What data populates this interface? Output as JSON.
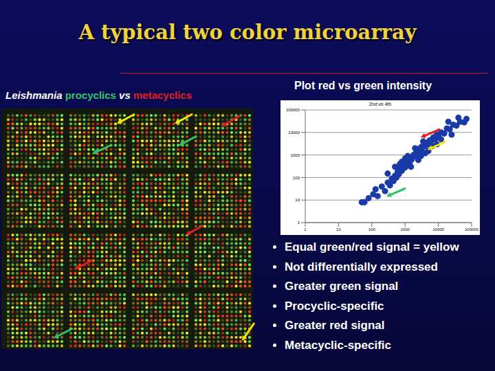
{
  "slide": {
    "title": "A typical two color microarray",
    "left_label": {
      "organism": "Leishmania",
      "first": "procyclics",
      "joiner": "vs",
      "second": "metacyclics"
    },
    "right_heading": "Plot red vs green intensity",
    "bullets": [
      "Equal green/red signal = yellow",
      "Not differentially expressed",
      "Greater green signal",
      "Procyclic-specific",
      "Greater red signal",
      "Metacyclic-specific"
    ]
  },
  "chart_data": {
    "type": "scatter",
    "title": "2nd vs 4th",
    "log": true,
    "grid": true,
    "color": "#1a3aa8",
    "marker": "circle",
    "xlim": [
      1,
      100000
    ],
    "ylim": [
      1,
      100000
    ],
    "xticks": [
      1,
      10,
      100,
      1000,
      10000,
      100000
    ],
    "yticks": [
      1,
      10,
      100,
      1000,
      10000,
      100000
    ],
    "x": [
      50,
      60,
      80,
      110,
      150,
      130,
      200,
      250,
      300,
      350,
      400,
      450,
      500,
      550,
      600,
      650,
      700,
      800,
      900,
      1000,
      1100,
      1200,
      1300,
      1400,
      1500,
      1600,
      1800,
      2000,
      2200,
      2400,
      2600,
      2800,
      3000,
      3300,
      3600,
      4000,
      4500,
      5000,
      5500,
      6000,
      7000,
      8000,
      9000,
      10000,
      12000,
      15000,
      18000,
      22000,
      28000,
      35000,
      45000,
      60000,
      70000,
      1500,
      2500,
      3000,
      800,
      5000,
      1200,
      700,
      20000,
      40000,
      9000,
      3500,
      6500,
      2000,
      1000,
      4000,
      12000,
      500,
      300,
      25000
    ],
    "y": [
      8,
      8,
      12,
      18,
      15,
      30,
      40,
      25,
      60,
      45,
      90,
      70,
      120,
      100,
      180,
      140,
      250,
      200,
      350,
      280,
      450,
      380,
      600,
      500,
      800,
      650,
      1000,
      900,
      1400,
      1200,
      1800,
      1500,
      2200,
      2000,
      2800,
      2500,
      3500,
      3000,
      4500,
      4000,
      6000,
      5000,
      8000,
      7000,
      10000,
      9000,
      15000,
      14000,
      22000,
      20000,
      30000,
      28000,
      40000,
      300,
      600,
      900,
      500,
      1500,
      900,
      400,
      30000,
      45000,
      3000,
      4000,
      2500,
      2000,
      700,
      1200,
      5000,
      300,
      150,
      8000
    ]
  }
}
